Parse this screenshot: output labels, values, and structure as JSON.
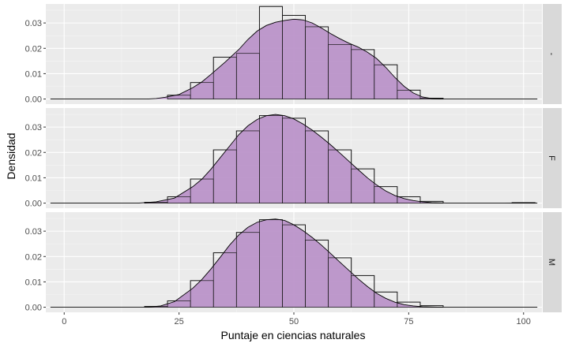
{
  "chart_data": {
    "type": "histogram-density",
    "xlabel": "Puntaje en ciencias naturales",
    "ylabel": "Densidad",
    "x_ticks": [
      0,
      25,
      50,
      75,
      100
    ],
    "x_tick_labels": [
      "0",
      "25",
      "50",
      "75",
      "100"
    ],
    "y_ticks": [
      0,
      0.01,
      0.02,
      0.03
    ],
    "y_tick_labels": [
      "0.00",
      "0.01",
      "0.02",
      "0.03"
    ],
    "xlim": [
      -4,
      104
    ],
    "ylim": [
      -0.002,
      0.0375
    ],
    "grid": true,
    "bin_width": 5,
    "density_fill": "#BA94C9",
    "density_opacity": 0.95,
    "panels": [
      {
        "strip_label": "-",
        "histogram": [
          {
            "x0": 20,
            "x1": 22.5,
            "density": 0.0
          },
          {
            "x0": 22.5,
            "x1": 27.5,
            "density": 0.0015
          },
          {
            "x0": 27.5,
            "x1": 32.5,
            "density": 0.0065
          },
          {
            "x0": 32.5,
            "x1": 37.5,
            "density": 0.0165
          },
          {
            "x0": 37.5,
            "x1": 42.5,
            "density": 0.018
          },
          {
            "x0": 42.5,
            "x1": 47.5,
            "density": 0.0365
          },
          {
            "x0": 47.5,
            "x1": 52.5,
            "density": 0.033
          },
          {
            "x0": 52.5,
            "x1": 57.5,
            "density": 0.0285
          },
          {
            "x0": 57.5,
            "x1": 62.5,
            "density": 0.0215
          },
          {
            "x0": 62.5,
            "x1": 67.5,
            "density": 0.0195
          },
          {
            "x0": 67.5,
            "x1": 72.5,
            "density": 0.0135
          },
          {
            "x0": 72.5,
            "x1": 77.5,
            "density": 0.0035
          },
          {
            "x0": 77.5,
            "x1": 82.5,
            "density": 0.0003
          }
        ],
        "density_curve": [
          [
            -3,
            0
          ],
          [
            10,
            0
          ],
          [
            18,
            0
          ],
          [
            20,
            0.0002
          ],
          [
            22,
            0.0007
          ],
          [
            25,
            0.0018
          ],
          [
            28,
            0.0045
          ],
          [
            30,
            0.0068
          ],
          [
            32,
            0.0098
          ],
          [
            35,
            0.0145
          ],
          [
            38,
            0.0195
          ],
          [
            40,
            0.0235
          ],
          [
            42,
            0.0268
          ],
          [
            44,
            0.029
          ],
          [
            46,
            0.0303
          ],
          [
            48,
            0.031
          ],
          [
            50,
            0.0315
          ],
          [
            52,
            0.0312
          ],
          [
            54,
            0.03
          ],
          [
            56,
            0.028
          ],
          [
            58,
            0.0258
          ],
          [
            60,
            0.0238
          ],
          [
            62,
            0.022
          ],
          [
            64,
            0.0205
          ],
          [
            66,
            0.0185
          ],
          [
            68,
            0.016
          ],
          [
            70,
            0.0125
          ],
          [
            72,
            0.0085
          ],
          [
            74,
            0.005
          ],
          [
            76,
            0.0024
          ],
          [
            78,
            0.0008
          ],
          [
            80,
            0.0002
          ],
          [
            82,
            0
          ],
          [
            90,
            0
          ],
          [
            103,
            0
          ]
        ]
      },
      {
        "strip_label": "F",
        "histogram": [
          {
            "x0": 15,
            "x1": 17.5,
            "density": 0.0
          },
          {
            "x0": 17.5,
            "x1": 22.5,
            "density": 0.0003
          },
          {
            "x0": 22.5,
            "x1": 27.5,
            "density": 0.0025
          },
          {
            "x0": 27.5,
            "x1": 32.5,
            "density": 0.0095
          },
          {
            "x0": 32.5,
            "x1": 37.5,
            "density": 0.021
          },
          {
            "x0": 37.5,
            "x1": 42.5,
            "density": 0.0285
          },
          {
            "x0": 42.5,
            "x1": 47.5,
            "density": 0.0345
          },
          {
            "x0": 47.5,
            "x1": 52.5,
            "density": 0.0335
          },
          {
            "x0": 52.5,
            "x1": 57.5,
            "density": 0.0285
          },
          {
            "x0": 57.5,
            "x1": 62.5,
            "density": 0.021
          },
          {
            "x0": 62.5,
            "x1": 67.5,
            "density": 0.0135
          },
          {
            "x0": 67.5,
            "x1": 72.5,
            "density": 0.0065
          },
          {
            "x0": 72.5,
            "x1": 77.5,
            "density": 0.0025
          },
          {
            "x0": 77.5,
            "x1": 82.5,
            "density": 0.0007
          },
          {
            "x0": 97.5,
            "x1": 102.5,
            "density": 0.0002
          }
        ],
        "density_curve": [
          [
            -3,
            0
          ],
          [
            10,
            0
          ],
          [
            16,
            0
          ],
          [
            20,
            0.0005
          ],
          [
            24,
            0.002
          ],
          [
            28,
            0.0065
          ],
          [
            30,
            0.0095
          ],
          [
            32,
            0.0135
          ],
          [
            34,
            0.018
          ],
          [
            36,
            0.0225
          ],
          [
            38,
            0.027
          ],
          [
            40,
            0.0305
          ],
          [
            42,
            0.033
          ],
          [
            44,
            0.0345
          ],
          [
            46,
            0.035
          ],
          [
            48,
            0.0345
          ],
          [
            50,
            0.0332
          ],
          [
            52,
            0.0312
          ],
          [
            54,
            0.0288
          ],
          [
            56,
            0.026
          ],
          [
            58,
            0.023
          ],
          [
            60,
            0.0198
          ],
          [
            62,
            0.0165
          ],
          [
            64,
            0.0132
          ],
          [
            66,
            0.01
          ],
          [
            68,
            0.0072
          ],
          [
            70,
            0.0048
          ],
          [
            72,
            0.003
          ],
          [
            74,
            0.0018
          ],
          [
            76,
            0.001
          ],
          [
            78,
            0.0005
          ],
          [
            80,
            0.0002
          ],
          [
            84,
            0
          ],
          [
            96,
            0
          ],
          [
            100,
            0.0001
          ],
          [
            103,
            0
          ]
        ]
      },
      {
        "strip_label": "M",
        "histogram": [
          {
            "x0": 17.5,
            "x1": 22.5,
            "density": 0.0003
          },
          {
            "x0": 22.5,
            "x1": 27.5,
            "density": 0.0025
          },
          {
            "x0": 27.5,
            "x1": 32.5,
            "density": 0.0105
          },
          {
            "x0": 32.5,
            "x1": 37.5,
            "density": 0.0215
          },
          {
            "x0": 37.5,
            "x1": 42.5,
            "density": 0.0295
          },
          {
            "x0": 42.5,
            "x1": 47.5,
            "density": 0.0345
          },
          {
            "x0": 47.5,
            "x1": 52.5,
            "density": 0.0325
          },
          {
            "x0": 52.5,
            "x1": 57.5,
            "density": 0.0265
          },
          {
            "x0": 57.5,
            "x1": 62.5,
            "density": 0.0195
          },
          {
            "x0": 62.5,
            "x1": 67.5,
            "density": 0.0125
          },
          {
            "x0": 67.5,
            "x1": 72.5,
            "density": 0.006
          },
          {
            "x0": 72.5,
            "x1": 77.5,
            "density": 0.002
          },
          {
            "x0": 77.5,
            "x1": 82.5,
            "density": 0.0006
          }
        ],
        "density_curve": [
          [
            -3,
            0
          ],
          [
            10,
            0
          ],
          [
            18,
            0
          ],
          [
            21,
            0.0005
          ],
          [
            24,
            0.0022
          ],
          [
            28,
            0.0075
          ],
          [
            30,
            0.011
          ],
          [
            32,
            0.0152
          ],
          [
            34,
            0.0198
          ],
          [
            36,
            0.0245
          ],
          [
            38,
            0.0285
          ],
          [
            40,
            0.0315
          ],
          [
            42,
            0.0335
          ],
          [
            44,
            0.0345
          ],
          [
            46,
            0.0348
          ],
          [
            48,
            0.0342
          ],
          [
            50,
            0.0325
          ],
          [
            52,
            0.0302
          ],
          [
            54,
            0.0275
          ],
          [
            56,
            0.0245
          ],
          [
            58,
            0.0212
          ],
          [
            60,
            0.0178
          ],
          [
            62,
            0.0145
          ],
          [
            64,
            0.0112
          ],
          [
            66,
            0.0082
          ],
          [
            68,
            0.0055
          ],
          [
            70,
            0.0035
          ],
          [
            72,
            0.002
          ],
          [
            74,
            0.001
          ],
          [
            76,
            0.0005
          ],
          [
            78,
            0.0002
          ],
          [
            82,
            0
          ],
          [
            103,
            0
          ]
        ]
      }
    ]
  }
}
